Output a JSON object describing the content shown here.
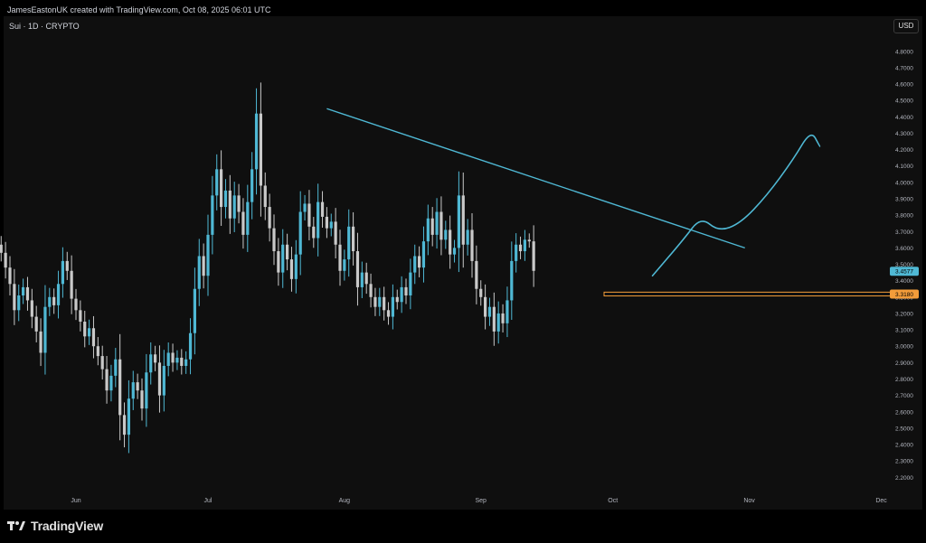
{
  "header": {
    "attribution": "JamesEastonUK created with TradingView.com, Oct 08, 2025 06:01 UTC",
    "symbol": "Sui · 1D · CRYPTO",
    "currency": "USD"
  },
  "footer": {
    "brand": "TradingView",
    "logo_icon": "tradingview-logo-icon"
  },
  "colors": {
    "bull": "#4fb8d4",
    "bear": "#c9c9c9",
    "trendline": "#4fb8d4",
    "zone": "#f39c3a",
    "current_tag": "#4fb8d4",
    "zone_tag": "#f39c3a"
  },
  "chart_data": {
    "type": "candlestick",
    "title": "",
    "xlabel": "",
    "ylabel": "",
    "y_range": [
      2.13,
      4.92
    ],
    "y_ticks": [
      "2.2000",
      "2.3000",
      "2.4000",
      "2.5000",
      "2.6000",
      "2.7000",
      "2.8000",
      "2.9000",
      "3.0000",
      "3.1000",
      "3.2000",
      "3.3000",
      "3.4000",
      "3.5000",
      "3.6000",
      "3.7000",
      "3.8000",
      "3.9000",
      "4.0000",
      "4.1000",
      "4.2000",
      "4.3000",
      "4.4000",
      "4.5000",
      "4.6000",
      "4.7000",
      "4.8000"
    ],
    "x_labels": [
      {
        "label": "Jun",
        "date": "2025-06-01"
      },
      {
        "label": "Jul",
        "date": "2025-07-01"
      },
      {
        "label": "Aug",
        "date": "2025-08-01"
      },
      {
        "label": "Sep",
        "date": "2025-09-01"
      },
      {
        "label": "Oct",
        "date": "2025-10-01"
      },
      {
        "label": "Nov",
        "date": "2025-11-01"
      },
      {
        "label": "Dec",
        "date": "2025-12-01"
      }
    ],
    "x_start": "2025-05-01",
    "close_series": [
      3.82,
      3.88,
      3.84,
      3.92,
      3.85,
      3.72,
      3.58,
      3.63,
      3.55,
      3.66,
      3.62,
      3.57,
      3.48,
      3.38,
      3.22,
      3.31,
      3.36,
      3.28,
      3.18,
      3.09,
      2.96,
      3.24,
      3.3,
      3.25,
      3.38,
      3.52,
      3.46,
      3.29,
      3.22,
      3.15,
      3.06,
      3.11,
      3.0,
      2.94,
      2.86,
      2.73,
      2.82,
      2.92,
      2.58,
      2.46,
      2.68,
      2.78,
      2.73,
      2.62,
      2.84,
      2.95,
      2.9,
      2.7,
      2.88,
      2.96,
      2.9,
      2.93,
      2.88,
      2.92,
      3.08,
      3.35,
      3.55,
      3.43,
      3.68,
      3.92,
      4.08,
      3.85,
      3.95,
      3.78,
      3.92,
      3.82,
      3.68,
      3.88,
      4.08,
      4.42,
      3.98,
      3.85,
      3.72,
      3.58,
      3.45,
      3.62,
      3.53,
      3.41,
      3.56,
      3.82,
      3.87,
      3.73,
      3.66,
      3.88,
      3.79,
      3.72,
      3.76,
      3.62,
      3.46,
      3.53,
      3.73,
      3.58,
      3.36,
      3.45,
      3.38,
      3.3,
      3.24,
      3.3,
      3.22,
      3.18,
      3.3,
      3.27,
      3.36,
      3.31,
      3.45,
      3.55,
      3.48,
      3.64,
      3.78,
      3.68,
      3.82,
      3.65,
      3.71,
      3.56,
      3.6,
      3.92,
      3.62,
      3.71,
      3.52,
      3.35,
      3.3,
      3.18,
      3.24,
      3.09,
      3.2,
      3.14,
      3.28,
      3.52,
      3.62,
      3.58,
      3.65,
      3.64,
      3.46
    ],
    "trendline": {
      "start": {
        "date": "2025-07-28",
        "price": 4.45
      },
      "end": {
        "date": "2025-10-31",
        "price": 3.6
      }
    },
    "support_zone": {
      "low": 3.307,
      "high": 3.33,
      "start": "2025-09-29"
    },
    "projection_path": [
      {
        "date": "2025-10-10",
        "price": 3.43
      },
      {
        "date": "2025-10-17",
        "price": 3.65
      },
      {
        "date": "2025-10-21",
        "price": 3.79
      },
      {
        "date": "2025-10-25",
        "price": 3.7
      },
      {
        "date": "2025-10-30",
        "price": 3.75
      },
      {
        "date": "2025-11-05",
        "price": 3.92
      },
      {
        "date": "2025-11-11",
        "price": 4.14
      },
      {
        "date": "2025-11-15",
        "price": 4.32
      },
      {
        "date": "2025-11-17",
        "price": 4.22
      }
    ],
    "current_price": {
      "value": 3.4577,
      "label": "3.4577"
    },
    "zone_price": {
      "value": 3.318,
      "label": "3.3180"
    }
  }
}
